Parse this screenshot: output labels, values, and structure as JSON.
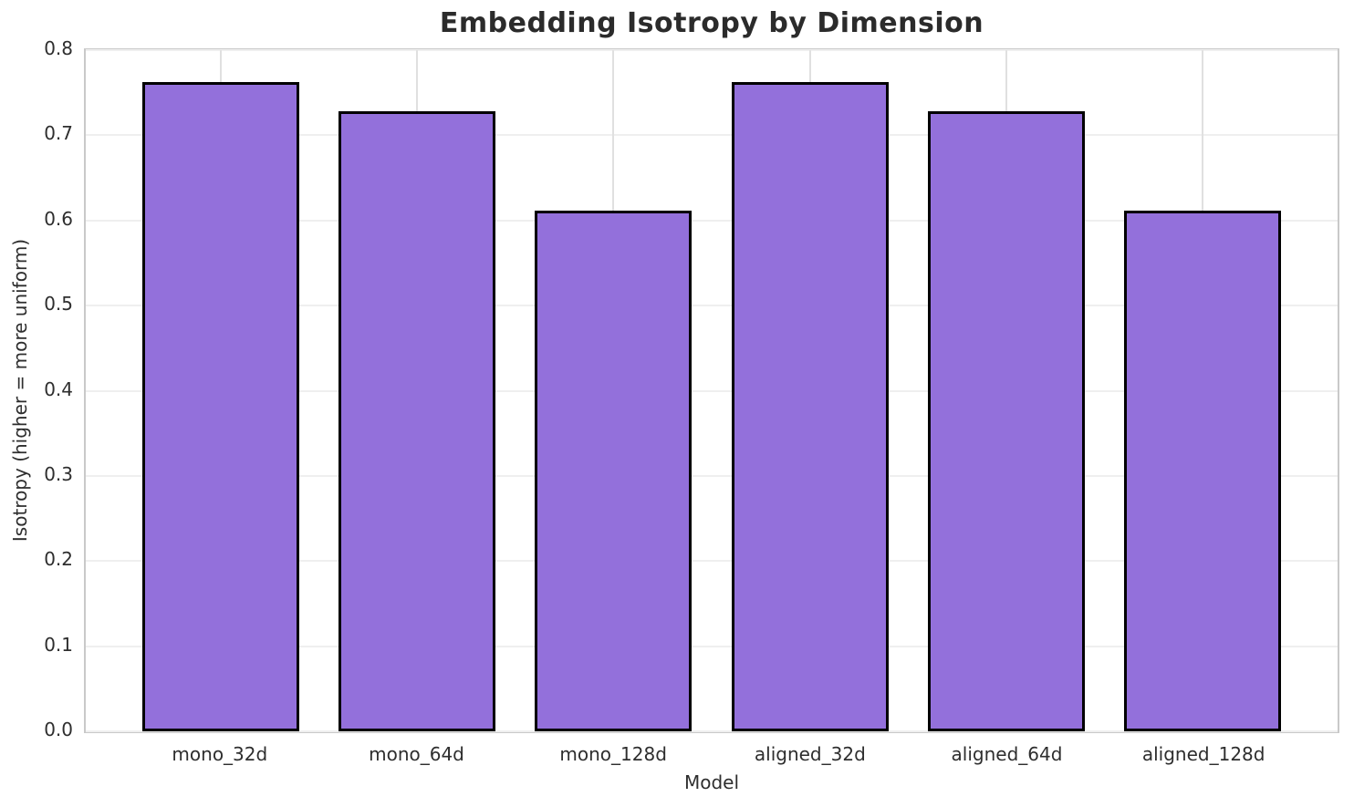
{
  "chart_data": {
    "type": "bar",
    "title": "Embedding Isotropy by Dimension",
    "xlabel": "Model",
    "ylabel": "Isotropy (higher = more uniform)",
    "categories": [
      "mono_32d",
      "mono_64d",
      "mono_128d",
      "aligned_32d",
      "aligned_64d",
      "aligned_128d"
    ],
    "values": [
      0.763,
      0.728,
      0.612,
      0.763,
      0.728,
      0.612
    ],
    "ylim": [
      0.0,
      0.8
    ],
    "yticks": [
      "0.0",
      "0.1",
      "0.2",
      "0.3",
      "0.4",
      "0.5",
      "0.6",
      "0.7",
      "0.8"
    ],
    "grid": "both",
    "legend": "none",
    "bar_color": "#9370DB",
    "bar_edge_color": "#000000",
    "xlim": [
      -0.69,
      5.69
    ],
    "bar_width_units": 0.8
  }
}
